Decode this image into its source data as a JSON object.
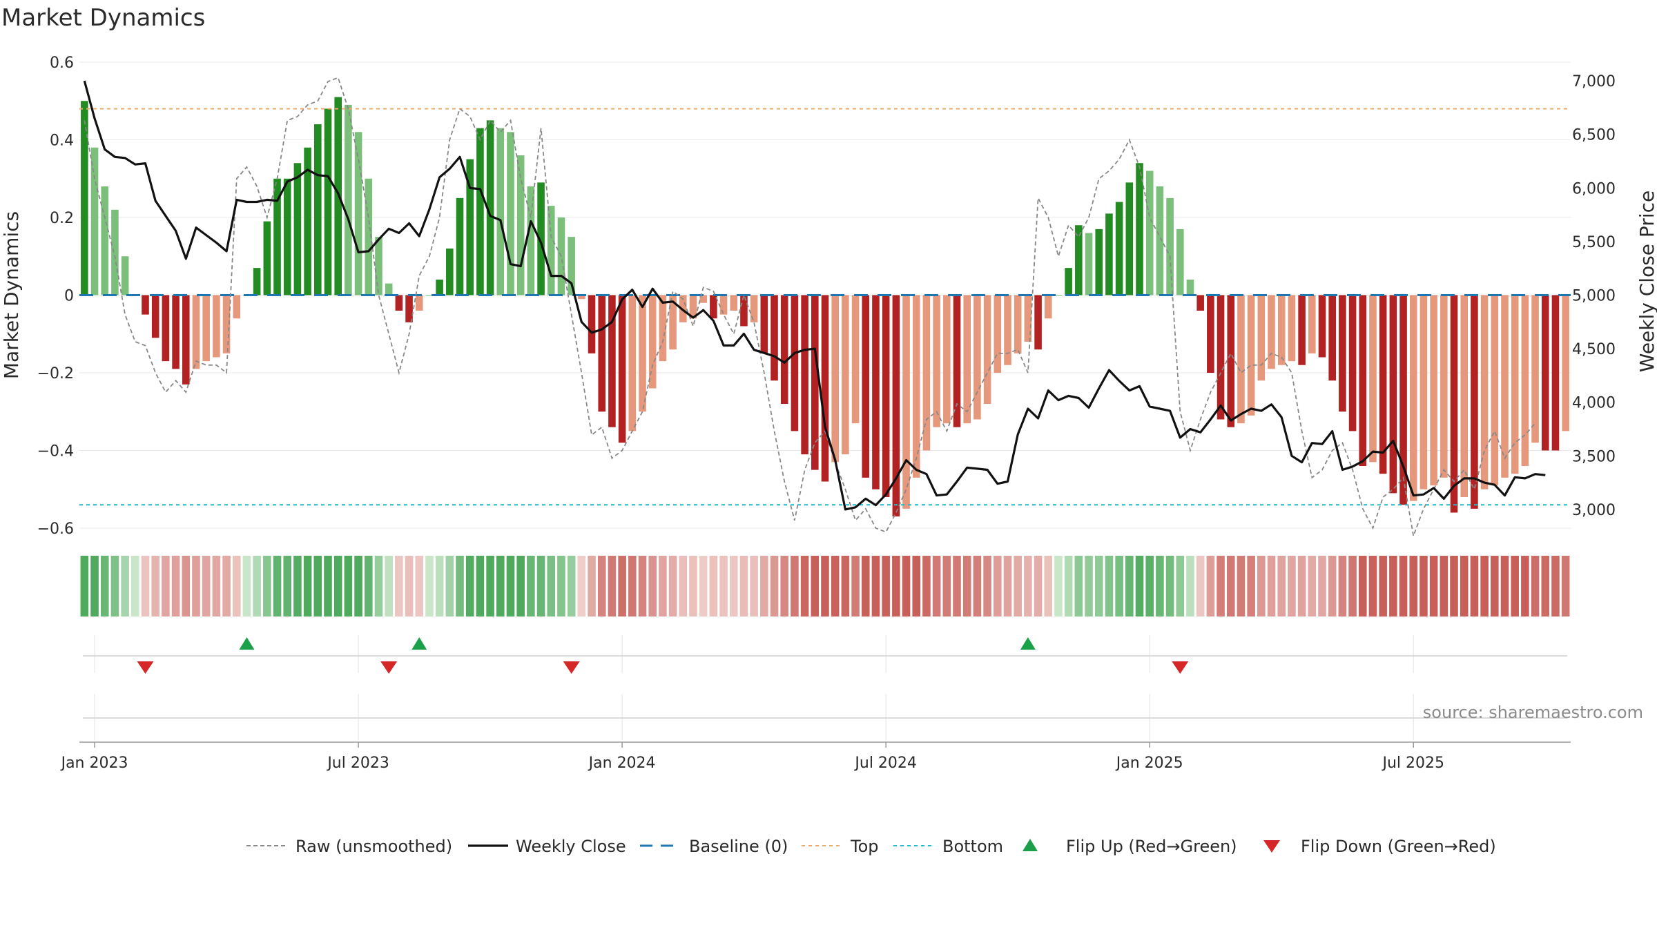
{
  "chart_data": {
    "title": "Market Dynamics",
    "type": "bar",
    "x_ticks": [
      "Jan 2023",
      "Jul 2023",
      "Jan 2024",
      "Jul 2024",
      "Jan 2025",
      "Jul 2025"
    ],
    "y_left": {
      "label": "Market Dynamics",
      "lim": [
        -0.6,
        0.6
      ],
      "ticks": [
        -0.6,
        -0.4,
        -0.2,
        0,
        0.2,
        0.4,
        0.6
      ],
      "tick_labels": [
        "−0.6",
        "−0.4",
        "−0.2",
        "0",
        "0.2",
        "0.4",
        "0.6"
      ]
    },
    "y_right": {
      "label": "Weekly Close Price",
      "ticks": [
        3000,
        3500,
        4000,
        4500,
        5000,
        5500,
        6000,
        6500,
        7000
      ],
      "tick_labels": [
        "3,000",
        "3,500",
        "4,000",
        "4,500",
        "5,000",
        "5,500",
        "6,000",
        "6,500",
        "7,000"
      ]
    },
    "top_level": 0.48,
    "bottom_level": -0.54,
    "baseline": 0,
    "dynamics": [
      0.5,
      0.38,
      0.28,
      0.22,
      0.1,
      0,
      -0.05,
      -0.11,
      -0.17,
      -0.19,
      -0.23,
      -0.19,
      -0.17,
      -0.16,
      -0.15,
      -0.06,
      0.0,
      0.07,
      0.19,
      0.3,
      0.3,
      0.34,
      0.38,
      0.44,
      0.48,
      0.51,
      0.49,
      0.42,
      0.3,
      0.15,
      0.03,
      -0.04,
      -0.07,
      -0.04,
      0.0,
      0.04,
      0.12,
      0.25,
      0.35,
      0.43,
      0.45,
      0.43,
      0.42,
      0.36,
      0.28,
      0.29,
      0.23,
      0.2,
      0.15,
      -0.01,
      -0.15,
      -0.3,
      -0.34,
      -0.38,
      -0.35,
      -0.3,
      -0.24,
      -0.17,
      -0.14,
      -0.07,
      -0.06,
      -0.02,
      -0.06,
      -0.05,
      -0.04,
      -0.08,
      -0.07,
      -0.15,
      -0.22,
      -0.28,
      -0.35,
      -0.41,
      -0.45,
      -0.48,
      -0.43,
      -0.41,
      -0.33,
      -0.47,
      -0.5,
      -0.52,
      -0.57,
      -0.55,
      -0.47,
      -0.4,
      -0.34,
      -0.33,
      -0.34,
      -0.33,
      -0.32,
      -0.28,
      -0.2,
      -0.18,
      -0.15,
      -0.12,
      -0.14,
      -0.06,
      0.0,
      0.07,
      0.18,
      0.16,
      0.17,
      0.21,
      0.24,
      0.29,
      0.34,
      0.32,
      0.28,
      0.25,
      0.17,
      0.04,
      -0.04,
      -0.2,
      -0.32,
      -0.34,
      -0.33,
      -0.31,
      -0.22,
      -0.19,
      -0.18,
      -0.17,
      -0.18,
      -0.15,
      -0.16,
      -0.22,
      -0.3,
      -0.35,
      -0.44,
      -0.43,
      -0.46,
      -0.51,
      -0.54,
      -0.53,
      -0.5,
      -0.49,
      -0.47,
      -0.56,
      -0.52,
      -0.55,
      -0.5,
      -0.49,
      -0.47,
      -0.46,
      -0.44,
      -0.38,
      -0.4,
      -0.4,
      -0.35
    ],
    "raw": [
      0.45,
      0.3,
      0.2,
      0.1,
      -0.05,
      -0.12,
      -0.13,
      -0.2,
      -0.25,
      -0.22,
      -0.25,
      -0.17,
      -0.18,
      -0.18,
      -0.2,
      0.3,
      0.33,
      0.28,
      0.2,
      0.3,
      0.45,
      0.46,
      0.49,
      0.5,
      0.55,
      0.56,
      0.48,
      0.35,
      0.2,
      0.0,
      -0.1,
      -0.2,
      -0.1,
      0.05,
      0.1,
      0.2,
      0.4,
      0.48,
      0.46,
      0.4,
      0.45,
      0.42,
      0.45,
      0.3,
      0.2,
      0.43,
      0.15,
      0.1,
      -0.05,
      -0.2,
      -0.36,
      -0.34,
      -0.42,
      -0.4,
      -0.35,
      -0.3,
      -0.18,
      -0.12,
      0.01,
      -0.01,
      -0.08,
      0.02,
      0.01,
      -0.05,
      -0.1,
      0.0,
      -0.07,
      -0.2,
      -0.35,
      -0.48,
      -0.58,
      -0.45,
      -0.38,
      -0.35,
      -0.43,
      -0.5,
      -0.58,
      -0.55,
      -0.6,
      -0.61,
      -0.56,
      -0.5,
      -0.42,
      -0.32,
      -0.3,
      -0.35,
      -0.28,
      -0.3,
      -0.25,
      -0.2,
      -0.15,
      -0.15,
      -0.14,
      -0.2,
      0.25,
      0.2,
      0.1,
      0.18,
      0.15,
      0.2,
      0.3,
      0.32,
      0.35,
      0.4,
      0.33,
      0.2,
      0.15,
      0.1,
      -0.3,
      -0.4,
      -0.32,
      -0.25,
      -0.2,
      -0.15,
      -0.2,
      -0.18,
      -0.18,
      -0.15,
      -0.16,
      -0.2,
      -0.35,
      -0.47,
      -0.45,
      -0.4,
      -0.38,
      -0.45,
      -0.55,
      -0.6,
      -0.52,
      -0.5,
      -0.47,
      -0.62,
      -0.55,
      -0.5,
      -0.45,
      -0.48,
      -0.45,
      -0.5,
      -0.4,
      -0.35,
      -0.42,
      -0.38,
      -0.36,
      -0.33
    ],
    "close": [
      7000,
      6650,
      6360,
      6290,
      6280,
      6220,
      6230,
      5880,
      5740,
      5600,
      5340,
      5630,
      5560,
      5490,
      5410,
      5890,
      5870,
      5870,
      5890,
      5880,
      6060,
      6100,
      6170,
      6120,
      6110,
      5950,
      5710,
      5400,
      5410,
      5520,
      5620,
      5580,
      5670,
      5550,
      5800,
      6100,
      6180,
      6290,
      6000,
      5990,
      5740,
      5700,
      5290,
      5270,
      5690,
      5490,
      5180,
      5180,
      5110,
      4750,
      4650,
      4680,
      4750,
      4960,
      5050,
      4890,
      5060,
      4930,
      4940,
      4860,
      4790,
      4860,
      4760,
      4530,
      4530,
      4640,
      4490,
      4460,
      4430,
      4370,
      4460,
      4490,
      4500,
      3770,
      3460,
      3000,
      3020,
      3100,
      3040,
      3140,
      3290,
      3460,
      3370,
      3330,
      3130,
      3140,
      3260,
      3390,
      3380,
      3370,
      3240,
      3260,
      3700,
      3940,
      3850,
      4110,
      4020,
      4060,
      4040,
      3950,
      4130,
      4300,
      4200,
      4110,
      4150,
      3960,
      3940,
      3920,
      3670,
      3750,
      3720,
      3840,
      3970,
      3830,
      3890,
      3940,
      3920,
      3980,
      3860,
      3500,
      3440,
      3620,
      3610,
      3730,
      3370,
      3400,
      3450,
      3540,
      3530,
      3640,
      3400,
      3130,
      3140,
      3200,
      3100,
      3220,
      3290,
      3290,
      3250,
      3230,
      3130,
      3300,
      3290,
      3330,
      3320
    ],
    "flips_up": [
      16,
      33,
      93
    ],
    "flips_down": [
      6,
      30,
      48,
      108
    ],
    "x_tick_index": [
      1,
      27,
      53,
      79,
      105,
      131
    ],
    "colors": {
      "strong_green": "#228b22",
      "light_green": "#7bbf7b",
      "strong_red": "#b22222",
      "light_red": "#e5987c",
      "close_line": "#111111",
      "raw_line": "#888888",
      "baseline": "#1f77b4",
      "top": "#f0a868",
      "bottom": "#17becf",
      "flip_up": "#1aa049",
      "flip_down": "#d62728",
      "grid": "#e8e8e8"
    },
    "legend": [
      "Raw (unsmoothed)",
      "Weekly Close",
      "Baseline (0)",
      "Top",
      "Bottom",
      "Flip Up (Red→Green)",
      "Flip Down (Green→Red)"
    ],
    "source": "source: sharemaestro.com"
  }
}
